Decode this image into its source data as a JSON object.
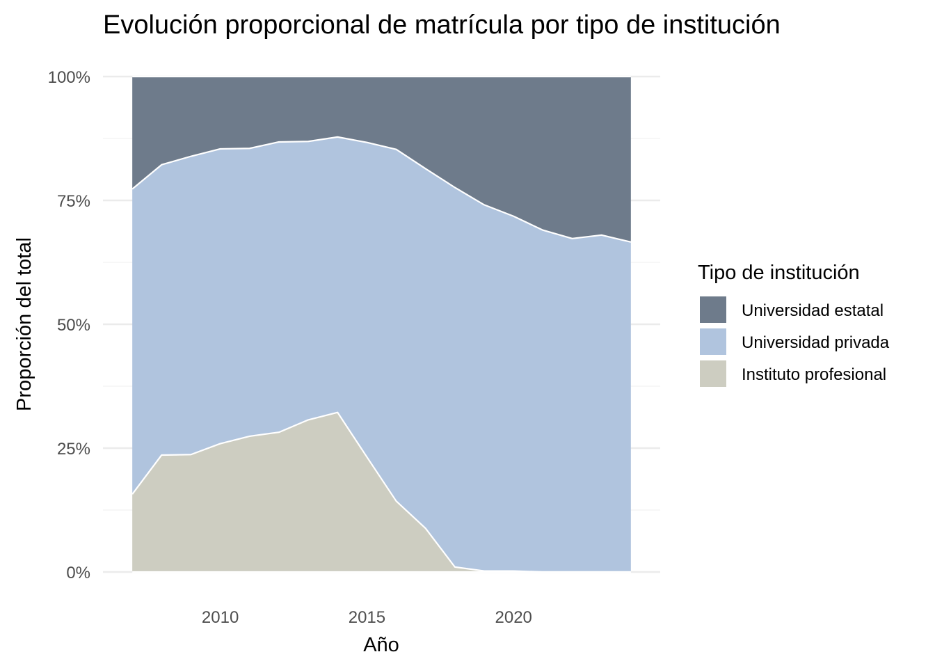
{
  "chart_data": {
    "type": "area",
    "stacked": "fill",
    "title": "Evolución proporcional de matrícula por tipo de institución",
    "xlabel": "Año",
    "ylabel": "Proporción del total",
    "x": [
      2007,
      2008,
      2009,
      2010,
      2011,
      2012,
      2013,
      2014,
      2015,
      2016,
      2017,
      2018,
      2019,
      2020,
      2021,
      2022,
      2023,
      2024
    ],
    "x_ticks": [
      2010,
      2015,
      2020
    ],
    "x_tick_labels": [
      "2010",
      "2015",
      "2020"
    ],
    "y_ticks": [
      0,
      0.25,
      0.5,
      0.75,
      1
    ],
    "y_tick_labels": [
      "0%",
      "25%",
      "50%",
      "75%",
      "100%"
    ],
    "xlim": [
      2006.0,
      2025.0
    ],
    "ylim": [
      0,
      1
    ],
    "grid": true,
    "legend_title": "Tipo de institución",
    "legend_position": "right",
    "series": [
      {
        "name": "Universidad estatal",
        "color": "#6e7b8b",
        "values": [
          0.227,
          0.178,
          0.161,
          0.146,
          0.145,
          0.132,
          0.131,
          0.122,
          0.133,
          0.147,
          0.186,
          0.224,
          0.259,
          0.282,
          0.31,
          0.327,
          0.32,
          0.334
        ]
      },
      {
        "name": "Universidad privada",
        "color": "#b0c4de",
        "values": [
          0.616,
          0.586,
          0.602,
          0.595,
          0.581,
          0.586,
          0.562,
          0.556,
          0.635,
          0.71,
          0.726,
          0.766,
          0.739,
          0.716,
          0.69,
          0.673,
          0.68,
          0.666
        ]
      },
      {
        "name": "Instituto profesional",
        "color": "#cdcdc1",
        "values": [
          0.157,
          0.236,
          0.237,
          0.259,
          0.274,
          0.282,
          0.307,
          0.322,
          0.232,
          0.143,
          0.088,
          0.01,
          0.002,
          0.002,
          0.0,
          0.0,
          0.0,
          0.0
        ]
      }
    ]
  }
}
